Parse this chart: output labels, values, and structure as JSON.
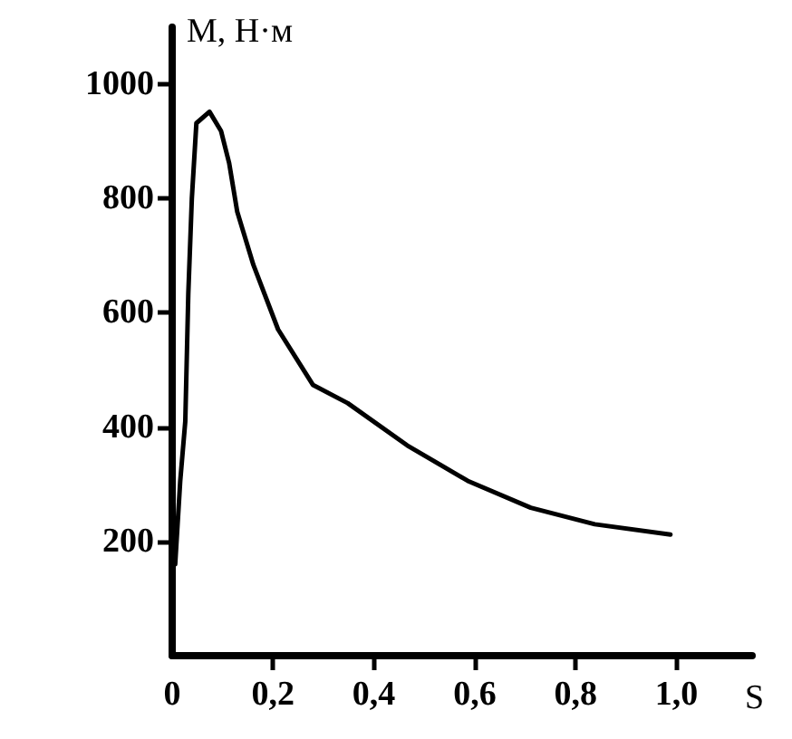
{
  "chart_data": {
    "type": "line",
    "xlabel": "S",
    "ylabel": "M, Н·м",
    "color": "#000000",
    "x": [
      0.006,
      0.016,
      0.026,
      0.032,
      0.039,
      0.048,
      0.074,
      0.097,
      0.113,
      0.129,
      0.161,
      0.21,
      0.279,
      0.348,
      0.466,
      0.586,
      0.711,
      0.838,
      0.988
    ],
    "values": [
      160,
      306,
      410,
      634,
      800,
      932,
      952,
      918,
      862,
      777,
      684,
      571,
      474,
      442,
      368,
      306,
      259,
      230,
      212
    ],
    "xlim": [
      0,
      1.15
    ],
    "ylim": [
      0,
      1100
    ],
    "xticks": [
      {
        "value": 0,
        "label": "0"
      },
      {
        "value": 0.2,
        "label": "0,2"
      },
      {
        "value": 0.4,
        "label": "0,4"
      },
      {
        "value": 0.6,
        "label": "0,6"
      },
      {
        "value": 0.8,
        "label": "0,8"
      },
      {
        "value": 1.0,
        "label": "1,0"
      }
    ],
    "yticks": [
      200,
      400,
      600,
      800,
      1000
    ],
    "grid": false,
    "marker": "none",
    "line_style": "solid"
  }
}
